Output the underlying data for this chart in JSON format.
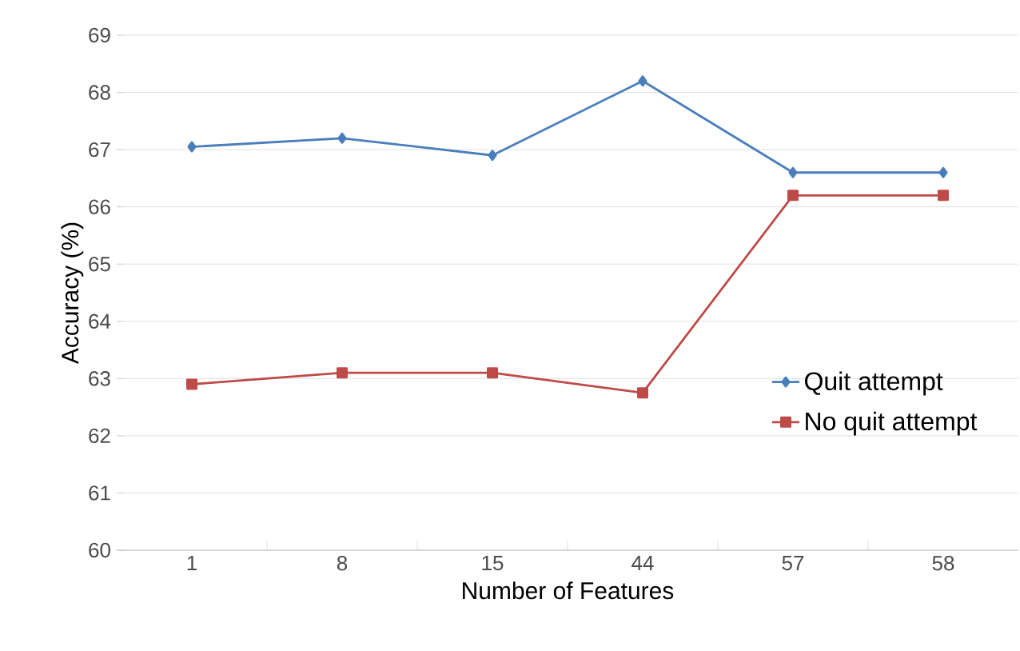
{
  "chart_data": {
    "type": "line",
    "xlabel": "Number of Features",
    "ylabel": "Accuracy (%)",
    "categories": [
      "1",
      "8",
      "15",
      "44",
      "57",
      "58"
    ],
    "series": [
      {
        "name": "Quit attempt",
        "color": "#4a7ebb",
        "marker": "diamond",
        "values": [
          67.05,
          67.2,
          66.9,
          68.2,
          66.6,
          66.6
        ]
      },
      {
        "name": "No quit attempt",
        "color": "#be4b48",
        "marker": "square",
        "values": [
          62.9,
          63.1,
          63.1,
          62.75,
          66.2,
          66.2
        ]
      }
    ],
    "ylim": [
      60,
      69
    ],
    "yticks": [
      60,
      61,
      62,
      63,
      64,
      65,
      66,
      67,
      68,
      69
    ],
    "grid": "y",
    "legend": "right",
    "line_style": "solid"
  }
}
